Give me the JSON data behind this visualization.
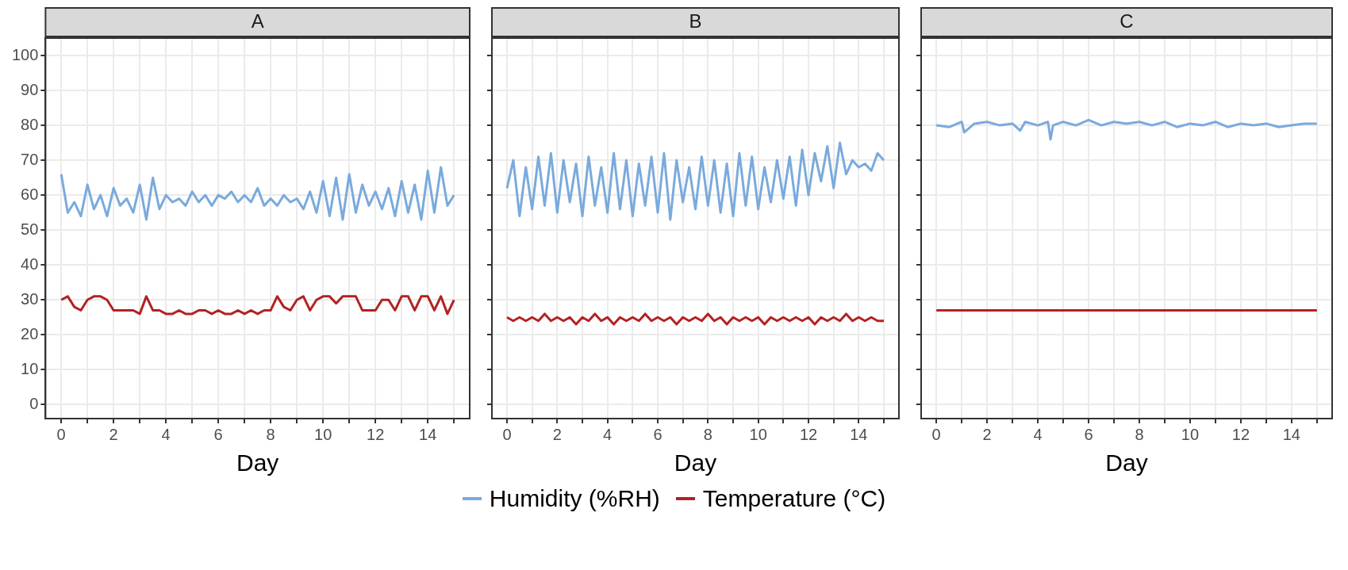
{
  "chart_data": [
    {
      "type": "line",
      "title": "A",
      "xlabel": "Day",
      "xlim": [
        -0.6,
        15.6
      ],
      "ylim": [
        -4,
        105
      ],
      "xticks": [
        0,
        {
          "value": 1,
          "label": null
        },
        2,
        {
          "value": 3,
          "label": null
        },
        4,
        {
          "value": 5,
          "label": null
        },
        6,
        {
          "value": 7,
          "label": null
        },
        8,
        {
          "value": 9,
          "label": null
        },
        10,
        {
          "value": 11,
          "label": null
        },
        12,
        {
          "value": 13,
          "label": null
        },
        14,
        {
          "value": 15,
          "label": null
        }
      ],
      "yticks": [
        0,
        10,
        20,
        30,
        40,
        50,
        60,
        70,
        80,
        90,
        100
      ],
      "grid": true,
      "legend": "bottom",
      "x": [
        0,
        0.25,
        0.5,
        0.75,
        1,
        1.25,
        1.5,
        1.75,
        2,
        2.25,
        2.5,
        2.75,
        3,
        3.25,
        3.5,
        3.75,
        4,
        4.25,
        4.5,
        4.75,
        5,
        5.25,
        5.5,
        5.75,
        6,
        6.25,
        6.5,
        6.75,
        7,
        7.25,
        7.5,
        7.75,
        8,
        8.25,
        8.5,
        8.75,
        9,
        9.25,
        9.5,
        9.75,
        10,
        10.25,
        10.5,
        10.75,
        11,
        11.25,
        11.5,
        11.75,
        12,
        12.25,
        12.5,
        12.75,
        13,
        13.25,
        13.5,
        13.75,
        14,
        14.25,
        14.5,
        14.75,
        15
      ],
      "series": [
        {
          "name": "Humidity (%RH)",
          "color": "#7aaadc",
          "values": [
            66,
            55,
            58,
            54,
            63,
            56,
            60,
            54,
            62,
            57,
            59,
            55,
            63,
            53,
            65,
            56,
            60,
            58,
            59,
            57,
            61,
            58,
            60,
            57,
            60,
            59,
            61,
            58,
            60,
            58,
            62,
            57,
            59,
            57,
            60,
            58,
            59,
            56,
            61,
            55,
            64,
            54,
            65,
            53,
            66,
            55,
            63,
            57,
            61,
            56,
            62,
            54,
            64,
            55,
            63,
            53,
            67,
            55,
            68,
            57,
            60
          ]
        },
        {
          "name": "Temperature (°C)",
          "color": "#b22222",
          "values": [
            30,
            31,
            28,
            27,
            30,
            31,
            31,
            30,
            27,
            27,
            27,
            27,
            26,
            31,
            27,
            27,
            26,
            26,
            27,
            26,
            26,
            27,
            27,
            26,
            27,
            26,
            26,
            27,
            26,
            27,
            26,
            27,
            27,
            31,
            28,
            27,
            30,
            31,
            27,
            30,
            31,
            31,
            29,
            31,
            31,
            31,
            27,
            27,
            27,
            30,
            30,
            27,
            31,
            31,
            27,
            31,
            31,
            27,
            31,
            26,
            30
          ]
        }
      ]
    },
    {
      "type": "line",
      "title": "B",
      "xlabel": "Day",
      "xlim": [
        -0.6,
        15.6
      ],
      "ylim": [
        -4,
        105
      ],
      "xticks": [
        0,
        {
          "value": 1,
          "label": null
        },
        2,
        {
          "value": 3,
          "label": null
        },
        4,
        {
          "value": 5,
          "label": null
        },
        6,
        {
          "value": 7,
          "label": null
        },
        8,
        {
          "value": 9,
          "label": null
        },
        10,
        {
          "value": 11,
          "label": null
        },
        12,
        {
          "value": 13,
          "label": null
        },
        14,
        {
          "value": 15,
          "label": null
        }
      ],
      "yticks": [
        {
          "value": 0,
          "label": null
        },
        {
          "value": 10,
          "label": null
        },
        {
          "value": 20,
          "label": null
        },
        {
          "value": 30,
          "label": null
        },
        {
          "value": 40,
          "label": null
        },
        {
          "value": 50,
          "label": null
        },
        {
          "value": 60,
          "label": null
        },
        {
          "value": 70,
          "label": null
        },
        {
          "value": 80,
          "label": null
        },
        {
          "value": 90,
          "label": null
        },
        {
          "value": 100,
          "label": null
        }
      ],
      "grid": true,
      "tick_labels": "x",
      "x": [
        0,
        0.25,
        0.5,
        0.75,
        1,
        1.25,
        1.5,
        1.75,
        2,
        2.25,
        2.5,
        2.75,
        3,
        3.25,
        3.5,
        3.75,
        4,
        4.25,
        4.5,
        4.75,
        5,
        5.25,
        5.5,
        5.75,
        6,
        6.25,
        6.5,
        6.75,
        7,
        7.25,
        7.5,
        7.75,
        8,
        8.25,
        8.5,
        8.75,
        9,
        9.25,
        9.5,
        9.75,
        10,
        10.25,
        10.5,
        10.75,
        11,
        11.25,
        11.5,
        11.75,
        12,
        12.25,
        12.5,
        12.75,
        13,
        13.25,
        13.5,
        13.75,
        14,
        14.25,
        14.5,
        14.75,
        15
      ],
      "series": [
        {
          "color": "#7aaadc",
          "values": [
            62,
            70,
            54,
            68,
            56,
            71,
            57,
            72,
            55,
            70,
            58,
            69,
            54,
            71,
            57,
            68,
            55,
            72,
            56,
            70,
            54,
            69,
            57,
            71,
            55,
            72,
            53,
            70,
            58,
            68,
            56,
            71,
            57,
            70,
            55,
            69,
            54,
            72,
            57,
            71,
            56,
            68,
            58,
            70,
            59,
            71,
            57,
            73,
            60,
            72,
            64,
            74,
            62,
            75,
            66,
            70,
            68,
            69,
            67,
            72,
            70
          ]
        },
        {
          "color": "#b22222",
          "values": [
            25,
            24,
            25,
            24,
            25,
            24,
            26,
            24,
            25,
            24,
            25,
            23,
            25,
            24,
            26,
            24,
            25,
            23,
            25,
            24,
            25,
            24,
            26,
            24,
            25,
            24,
            25,
            23,
            25,
            24,
            25,
            24,
            26,
            24,
            25,
            23,
            25,
            24,
            25,
            24,
            25,
            23,
            25,
            24,
            25,
            24,
            25,
            24,
            25,
            23,
            25,
            24,
            25,
            24,
            26,
            24,
            25,
            24,
            25,
            24,
            24
          ]
        }
      ]
    },
    {
      "type": "line",
      "title": "C",
      "xlabel": "Day",
      "xlim": [
        -0.6,
        15.6
      ],
      "ylim": [
        -4,
        105
      ],
      "xticks": [
        0,
        {
          "value": 1,
          "label": null
        },
        2,
        {
          "value": 3,
          "label": null
        },
        4,
        {
          "value": 5,
          "label": null
        },
        6,
        {
          "value": 7,
          "label": null
        },
        8,
        {
          "value": 9,
          "label": null
        },
        10,
        {
          "value": 11,
          "label": null
        },
        12,
        {
          "value": 13,
          "label": null
        },
        14,
        {
          "value": 15,
          "label": null
        }
      ],
      "yticks": [
        {
          "value": 0,
          "label": null
        },
        {
          "value": 10,
          "label": null
        },
        {
          "value": 20,
          "label": null
        },
        {
          "value": 30,
          "label": null
        },
        {
          "value": 40,
          "label": null
        },
        {
          "value": 50,
          "label": null
        },
        {
          "value": 60,
          "label": null
        },
        {
          "value": 70,
          "label": null
        },
        {
          "value": 80,
          "label": null
        },
        {
          "value": 90,
          "label": null
        },
        {
          "value": 100,
          "label": null
        }
      ],
      "grid": true,
      "tick_labels": "x",
      "x": [
        0,
        0.5,
        1,
        1.1,
        1.5,
        2,
        2.5,
        3,
        3.3,
        3.5,
        4,
        4.4,
        4.5,
        4.6,
        5,
        5.5,
        6,
        6.5,
        7,
        7.5,
        8,
        8.5,
        9,
        9.5,
        10,
        10.5,
        11,
        11.5,
        12,
        12.5,
        13,
        13.5,
        14,
        14.5,
        15
      ],
      "series": [
        {
          "color": "#7aaadc",
          "values": [
            80,
            79.5,
            81,
            78,
            80.5,
            81,
            80,
            80.5,
            78.5,
            81,
            80,
            81,
            76,
            80,
            81,
            80,
            81.5,
            80,
            81,
            80.5,
            81,
            80,
            81,
            79.5,
            80.5,
            80,
            81,
            79.5,
            80.5,
            80,
            80.5,
            79.5,
            80,
            80.5,
            80.5
          ]
        },
        {
          "color": "#b22222",
          "values": [
            27,
            27,
            27,
            27,
            27,
            27,
            27,
            27,
            27,
            27,
            27,
            27,
            27,
            27,
            27,
            27,
            27,
            27,
            27,
            27,
            27,
            27,
            27,
            27,
            27,
            27,
            27,
            27,
            27,
            27,
            27,
            27,
            27,
            27,
            27
          ]
        }
      ]
    }
  ]
}
